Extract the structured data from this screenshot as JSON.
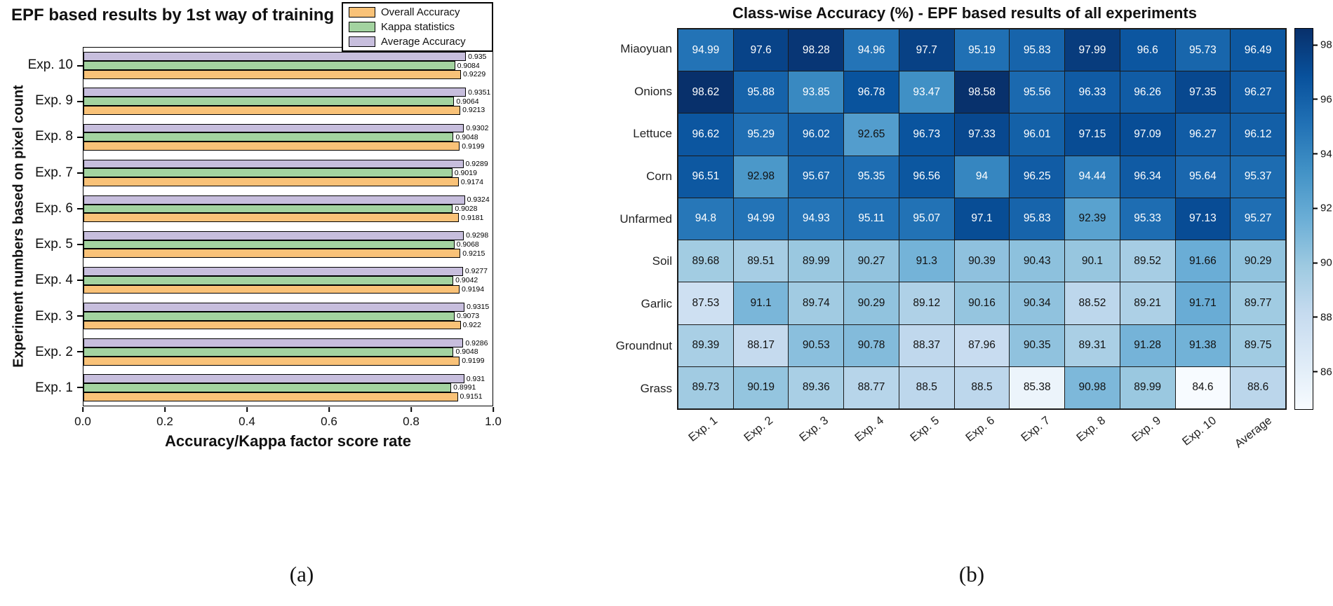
{
  "captions": {
    "a": "(a)",
    "b": "(b)"
  },
  "chart_data": [
    {
      "type": "bar",
      "orientation": "horizontal",
      "title": "EPF based results by 1st way of training",
      "xlabel": "Accuracy/Kappa factor score rate",
      "ylabel": "Experiment numbers based on pixel count",
      "xlim": [
        0,
        1.0
      ],
      "xticks": [
        0,
        0.2,
        0.4,
        0.6,
        0.8,
        1.0
      ],
      "grid": false,
      "legend_position": "top-right",
      "categories": [
        "Exp. 10",
        "Exp. 9",
        "Exp. 8",
        "Exp. 7",
        "Exp. 6",
        "Exp. 5",
        "Exp. 4",
        "Exp. 3",
        "Exp. 2",
        "Exp. 1"
      ],
      "series": [
        {
          "name": "Average Accuracy",
          "color": "#c7bedd",
          "values": [
            0.935,
            0.9351,
            0.9302,
            0.9289,
            0.9324,
            0.9298,
            0.9277,
            0.9315,
            0.9286,
            0.931
          ]
        },
        {
          "name": "Kappa statistics",
          "color": "#a3d3a0",
          "values": [
            0.9084,
            0.9064,
            0.9048,
            0.9019,
            0.9028,
            0.9068,
            0.9042,
            0.9073,
            0.9048,
            0.8991
          ]
        },
        {
          "name": "Overall Accuracy",
          "color": "#f9c278",
          "values": [
            0.9229,
            0.9213,
            0.9199,
            0.9174,
            0.9181,
            0.9215,
            0.9194,
            0.922,
            0.9199,
            0.9151
          ]
        }
      ],
      "legend": [
        {
          "label": "Overall Accuracy",
          "color": "#f9c278"
        },
        {
          "label": "Kappa statistics",
          "color": "#a3d3a0"
        },
        {
          "label": "Average Accuracy",
          "color": "#c7bedd"
        }
      ]
    },
    {
      "type": "heatmap",
      "title": "Class-wise Accuracy (%) - EPF based results of all experiments",
      "rows": [
        "Miaoyuan",
        "Onions",
        "Lettuce",
        "Corn",
        "Unfarmed",
        "Soil",
        "Garlic",
        "Groundnut",
        "Grass"
      ],
      "columns": [
        "Exp. 1",
        "Exp. 2",
        "Exp. 3",
        "Exp. 4",
        "Exp. 5",
        "Exp. 6",
        "Exp. 7",
        "Exp. 8",
        "Exp. 9",
        "Exp. 10",
        "Average"
      ],
      "values": [
        [
          94.99,
          97.6,
          98.28,
          94.96,
          97.7,
          95.19,
          95.83,
          97.99,
          96.6,
          95.73,
          96.49
        ],
        [
          98.62,
          95.88,
          93.85,
          96.78,
          93.47,
          98.58,
          95.56,
          96.33,
          96.26,
          97.35,
          96.27
        ],
        [
          96.62,
          95.29,
          96.02,
          92.65,
          96.73,
          97.33,
          96.01,
          97.15,
          97.09,
          96.27,
          96.12
        ],
        [
          96.51,
          92.98,
          95.67,
          95.35,
          96.56,
          94,
          96.25,
          94.44,
          96.34,
          95.64,
          95.37
        ],
        [
          94.8,
          94.99,
          94.93,
          95.11,
          95.07,
          97.1,
          95.83,
          92.39,
          95.33,
          97.13,
          95.27
        ],
        [
          89.68,
          89.51,
          89.99,
          90.27,
          91.3,
          90.39,
          90.43,
          90.1,
          89.52,
          91.66,
          90.29
        ],
        [
          87.53,
          91.1,
          89.74,
          90.29,
          89.12,
          90.16,
          90.34,
          88.52,
          89.21,
          91.71,
          89.77
        ],
        [
          89.39,
          88.17,
          90.53,
          90.78,
          88.37,
          87.96,
          90.35,
          89.31,
          91.28,
          91.38,
          89.75
        ],
        [
          89.73,
          90.19,
          89.36,
          88.77,
          88.5,
          88.5,
          85.38,
          90.98,
          89.99,
          84.6,
          88.6
        ]
      ],
      "colorbar": {
        "ticks": [
          86,
          88,
          90,
          92,
          94,
          96,
          98
        ],
        "vmin": 84.6,
        "vmax": 98.62,
        "colormap": "Blues",
        "position": "right"
      }
    }
  ]
}
